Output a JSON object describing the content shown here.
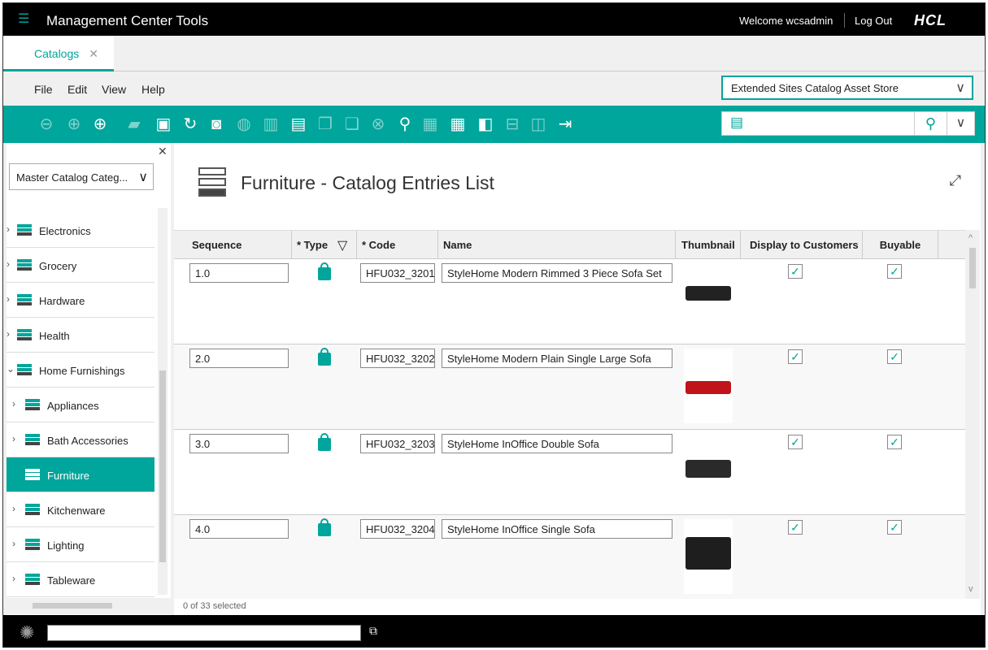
{
  "header": {
    "title": "Management Center Tools",
    "welcome": "Welcome wcsadmin",
    "logout": "Log Out",
    "logo": "HCL"
  },
  "tabs": [
    {
      "label": "Catalogs",
      "close": "✕"
    }
  ],
  "menu": [
    "File",
    "Edit",
    "View",
    "Help"
  ],
  "store_selector": "Extended Sites Catalog Asset Store",
  "toolbar": [
    {
      "icon": "back-icon",
      "glyph": "⊖",
      "enabled": false
    },
    {
      "icon": "forward-icon",
      "glyph": "⊕",
      "enabled": false
    },
    {
      "icon": "new-icon",
      "glyph": "⊕",
      "enabled": true
    },
    {
      "icon": "open-folder-icon",
      "glyph": "▰",
      "enabled": false
    },
    {
      "icon": "save-icon",
      "glyph": "▣",
      "enabled": true
    },
    {
      "icon": "refresh-icon",
      "glyph": "↻",
      "enabled": true
    },
    {
      "icon": "stop-icon",
      "glyph": "◙",
      "enabled": true
    },
    {
      "icon": "globe-icon",
      "glyph": "◍",
      "enabled": false
    },
    {
      "icon": "grid-column-icon",
      "glyph": "▥",
      "enabled": false
    },
    {
      "icon": "preview-icon",
      "glyph": "▤",
      "enabled": true
    },
    {
      "icon": "copy-icon",
      "glyph": "❐",
      "enabled": false
    },
    {
      "icon": "paste-icon",
      "glyph": "❏",
      "enabled": false
    },
    {
      "icon": "delete-icon",
      "glyph": "⊗",
      "enabled": false
    },
    {
      "icon": "find-icon",
      "glyph": "⚲",
      "enabled": true
    },
    {
      "icon": "table-icon",
      "glyph": "▦",
      "enabled": false
    },
    {
      "icon": "table-list-icon",
      "glyph": "▦",
      "enabled": true
    },
    {
      "icon": "tree-icon",
      "glyph": "◧",
      "enabled": true
    },
    {
      "icon": "split-horizontal-icon",
      "glyph": "⊟",
      "enabled": false
    },
    {
      "icon": "split-vertical-icon",
      "glyph": "◫",
      "enabled": false
    },
    {
      "icon": "expand-panel-icon",
      "glyph": "⇥",
      "enabled": true
    }
  ],
  "left_panel": {
    "selector": "Master Catalog Categ...",
    "items": [
      {
        "label": "Electronics",
        "level": 0,
        "expanded": false
      },
      {
        "label": "Grocery",
        "level": 0,
        "expanded": false
      },
      {
        "label": "Hardware",
        "level": 0,
        "expanded": false
      },
      {
        "label": "Health",
        "level": 0,
        "expanded": false
      },
      {
        "label": "Home Furnishings",
        "level": 0,
        "expanded": true
      },
      {
        "label": "Appliances",
        "level": 1,
        "expanded": false
      },
      {
        "label": "Bath Accessories",
        "level": 1,
        "expanded": false
      },
      {
        "label": "Furniture",
        "level": 1,
        "selected": true
      },
      {
        "label": "Kitchenware",
        "level": 1,
        "expanded": false
      },
      {
        "label": "Lighting",
        "level": 1,
        "expanded": false
      },
      {
        "label": "Tableware",
        "level": 1,
        "expanded": false
      }
    ]
  },
  "main": {
    "title": "Furniture - Catalog Entries List",
    "columns": [
      "Sequence",
      "* Type",
      "* Code",
      "Name",
      "Thumbnail",
      "Display to Customers",
      "Buyable"
    ],
    "rows": [
      {
        "sequence": "1.0",
        "type": "product",
        "code": "HFU032_3201",
        "name": "StyleHome Modern Rimmed 3 Piece Sofa Set",
        "display": true,
        "buyable": true,
        "thumb_color": "#222222"
      },
      {
        "sequence": "2.0",
        "type": "product",
        "code": "HFU032_3202",
        "name": "StyleHome Modern Plain Single Large Sofa",
        "display": true,
        "buyable": true,
        "thumb_color": "#c0141a"
      },
      {
        "sequence": "3.0",
        "type": "product",
        "code": "HFU032_3203",
        "name": "StyleHome InOffice Double Sofa",
        "display": true,
        "buyable": true,
        "thumb_color": "#2a2a2a"
      },
      {
        "sequence": "4.0",
        "type": "product",
        "code": "HFU032_3204",
        "name": "StyleHome InOffice Single Sofa",
        "display": true,
        "buyable": true,
        "thumb_color": "#1e1e1e"
      }
    ],
    "status": "0 of 33 selected"
  },
  "colors": {
    "accent": "#00a59b"
  }
}
